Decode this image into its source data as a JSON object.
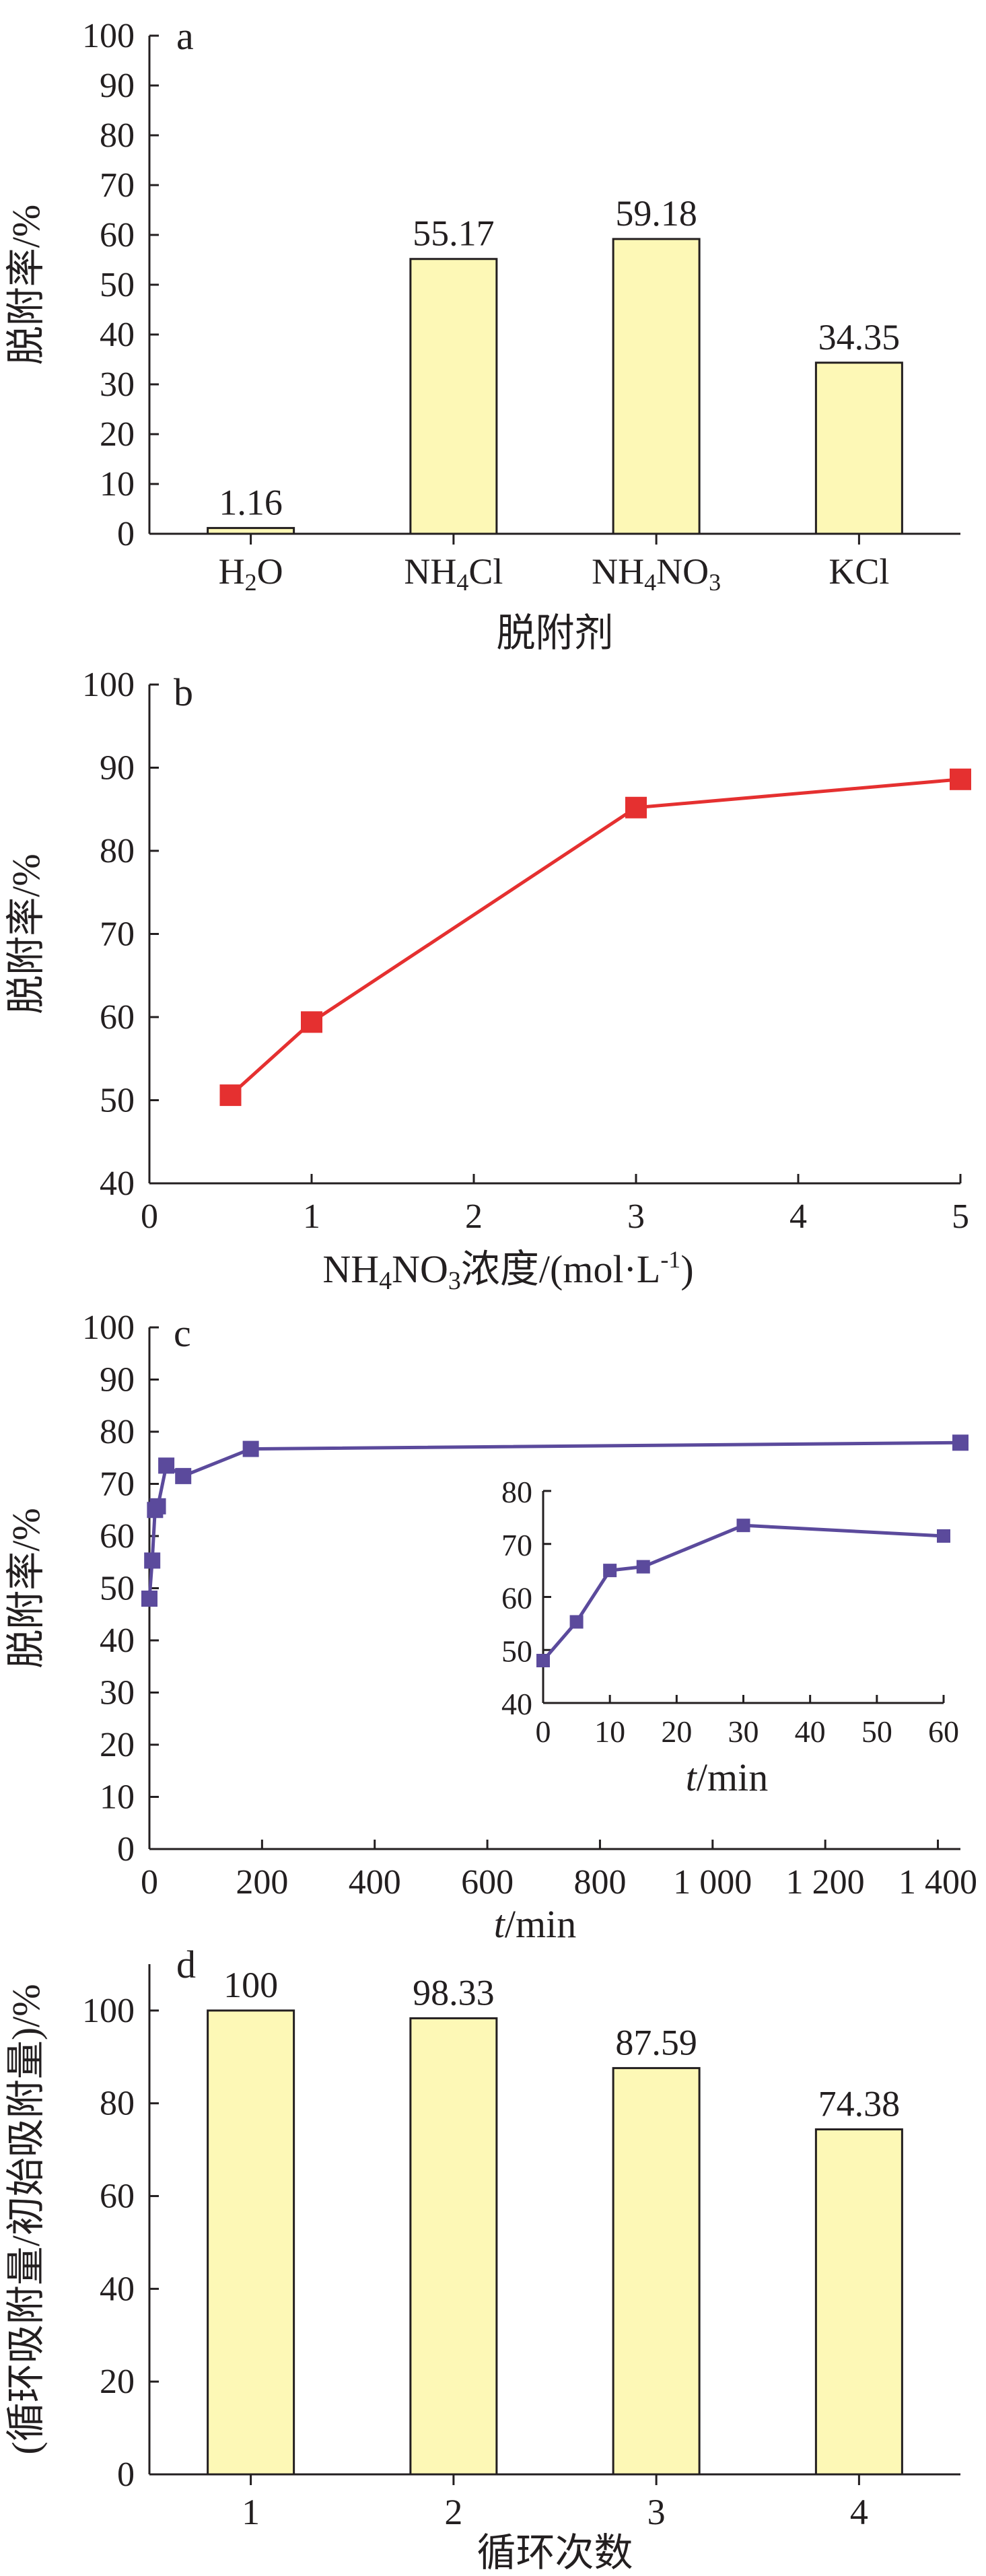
{
  "colors": {
    "bar_fill": "#fdf8b6",
    "bar_stroke": "#231f20",
    "line_b": "#e53030",
    "line_c": "#5b4a9c",
    "axis": "#231f20"
  },
  "chart_data": [
    {
      "id": "a",
      "panel_label": "a",
      "type": "bar",
      "ylabel": "脱附率/%",
      "xlabel": "脱附剂",
      "ylim": [
        0,
        100
      ],
      "yticks": [
        0,
        10,
        20,
        30,
        40,
        50,
        60,
        70,
        80,
        90,
        100
      ],
      "categories": [
        {
          "base": "H",
          "sub": "2",
          "tail": "O",
          "sub2": "",
          "tail2": ""
        },
        {
          "base": "NH",
          "sub": "4",
          "tail": "Cl",
          "sub2": "",
          "tail2": ""
        },
        {
          "base": "NH",
          "sub": "4",
          "tail": "NO",
          "sub2": "3",
          "tail2": ""
        },
        {
          "base": "KCl",
          "sub": "",
          "tail": "",
          "sub2": "",
          "tail2": ""
        }
      ],
      "values": [
        1.16,
        55.17,
        59.18,
        34.35
      ],
      "value_labels": [
        "1.16",
        "55.17",
        "59.18",
        "34.35"
      ]
    },
    {
      "id": "b",
      "panel_label": "b",
      "type": "line",
      "ylabel": "脱附率/%",
      "xlabel_parts": {
        "base": "NH",
        "sub": "4",
        "mid": "NO",
        "sub2": "3",
        "tail": "浓度/(mol·L",
        "sup": "-1",
        "end": ")"
      },
      "xlim": [
        0,
        5
      ],
      "ylim": [
        40,
        100
      ],
      "xticks": [
        0,
        1,
        2,
        3,
        4,
        5
      ],
      "yticks": [
        40,
        50,
        60,
        70,
        80,
        90,
        100
      ],
      "x": [
        0.5,
        1,
        3,
        5
      ],
      "y": [
        50.6,
        59.4,
        85.2,
        88.6
      ]
    },
    {
      "id": "c",
      "panel_label": "c",
      "type": "line",
      "ylabel": "脱附率/%",
      "xlabel_italic": "t",
      "xlabel_rest": "/min",
      "xlim": [
        0,
        1440
      ],
      "ylim": [
        0,
        100
      ],
      "xticks": [
        0,
        200,
        400,
        600,
        800,
        1000,
        1200,
        1400
      ],
      "xtick_labels": [
        "0",
        "200",
        "400",
        "600",
        "800",
        "1 000",
        "1 200",
        "1 400"
      ],
      "yticks": [
        0,
        10,
        20,
        30,
        40,
        50,
        60,
        70,
        80,
        90,
        100
      ],
      "x": [
        0,
        5,
        10,
        15,
        30,
        60,
        180,
        1440
      ],
      "y": [
        48,
        55.3,
        65,
        65.7,
        73.5,
        71.5,
        76.7,
        77.9
      ],
      "inset": {
        "xlabel_italic": "t",
        "xlabel_rest": "/min",
        "xlim": [
          0,
          60
        ],
        "ylim": [
          40,
          80
        ],
        "xticks": [
          0,
          10,
          20,
          30,
          40,
          50,
          60
        ],
        "yticks": [
          40,
          50,
          60,
          70,
          80
        ],
        "x": [
          0,
          5,
          10,
          15,
          30,
          60
        ],
        "y": [
          48,
          55.3,
          65,
          65.7,
          73.5,
          71.5
        ]
      }
    },
    {
      "id": "d",
      "panel_label": "d",
      "type": "bar",
      "ylabel": "(循环吸附量/初始吸附量)/%",
      "xlabel": "循环次数",
      "ylim": [
        0,
        110
      ],
      "yticks": [
        0,
        20,
        40,
        60,
        80,
        100
      ],
      "categories": [
        "1",
        "2",
        "3",
        "4"
      ],
      "values": [
        100,
        98.33,
        87.59,
        74.38
      ],
      "value_labels": [
        "100",
        "98.33",
        "87.59",
        "74.38"
      ]
    }
  ]
}
